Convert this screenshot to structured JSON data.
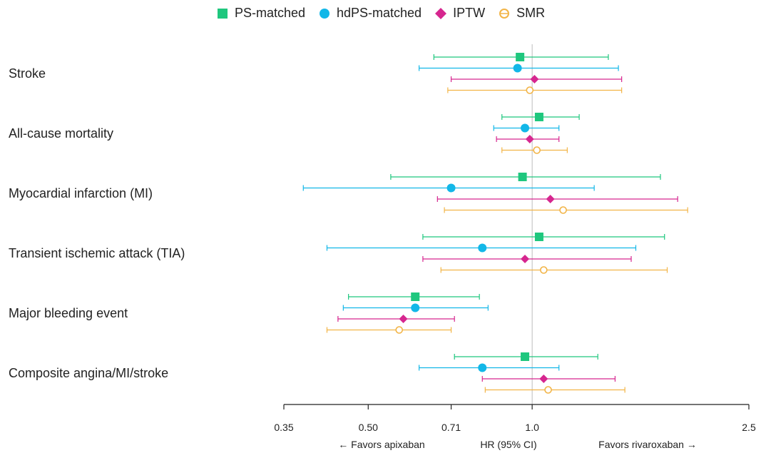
{
  "chart_data": {
    "type": "forest",
    "title": "",
    "legend": [
      {
        "name": "PS-matched",
        "marker": "square",
        "color": "#1fc77e"
      },
      {
        "name": "hdPS-matched",
        "marker": "circle",
        "color": "#12b7e8"
      },
      {
        "name": "IPTW",
        "marker": "diamond",
        "color": "#d6268f"
      },
      {
        "name": "SMR",
        "marker": "open-circle",
        "color": "#f2b446"
      }
    ],
    "xscale": "log",
    "xlim": [
      0.35,
      2.5
    ],
    "xticks": [
      0.35,
      0.5,
      0.71,
      1.0,
      2.5
    ],
    "xtick_labels": [
      "0.35",
      "0.50",
      "0.71",
      "1.0",
      "2.5"
    ],
    "xlabel": "HR (95% CI)",
    "left_note": "← Favors apixaban",
    "right_note": "Favors rivaroxaban →",
    "reference_line": 1.0,
    "outcomes": [
      {
        "label": "Stroke",
        "estimates": [
          {
            "series": "PS-matched",
            "hr": 0.95,
            "lo": 0.66,
            "hi": 1.38
          },
          {
            "series": "hdPS-matched",
            "hr": 0.94,
            "lo": 0.62,
            "hi": 1.44
          },
          {
            "series": "IPTW",
            "hr": 1.01,
            "lo": 0.71,
            "hi": 1.46
          },
          {
            "series": "SMR",
            "hr": 0.99,
            "lo": 0.7,
            "hi": 1.46
          }
        ]
      },
      {
        "label": "All-cause mortality",
        "estimates": [
          {
            "series": "PS-matched",
            "hr": 1.03,
            "lo": 0.88,
            "hi": 1.22
          },
          {
            "series": "hdPS-matched",
            "hr": 0.97,
            "lo": 0.85,
            "hi": 1.12
          },
          {
            "series": "IPTW",
            "hr": 0.99,
            "lo": 0.86,
            "hi": 1.12
          },
          {
            "series": "SMR",
            "hr": 1.02,
            "lo": 0.88,
            "hi": 1.16
          }
        ]
      },
      {
        "label": "Myocardial infarction (MI)",
        "estimates": [
          {
            "series": "PS-matched",
            "hr": 0.96,
            "lo": 0.55,
            "hi": 1.72
          },
          {
            "series": "hdPS-matched",
            "hr": 0.71,
            "lo": 0.38,
            "hi": 1.3
          },
          {
            "series": "IPTW",
            "hr": 1.08,
            "lo": 0.67,
            "hi": 1.85
          },
          {
            "series": "SMR",
            "hr": 1.14,
            "lo": 0.69,
            "hi": 1.93
          }
        ]
      },
      {
        "label": "Transient ischemic attack (TIA)",
        "estimates": [
          {
            "series": "PS-matched",
            "hr": 1.03,
            "lo": 0.63,
            "hi": 1.75
          },
          {
            "series": "hdPS-matched",
            "hr": 0.81,
            "lo": 0.42,
            "hi": 1.55
          },
          {
            "series": "IPTW",
            "hr": 0.97,
            "lo": 0.63,
            "hi": 1.52
          },
          {
            "series": "SMR",
            "hr": 1.05,
            "lo": 0.68,
            "hi": 1.77
          }
        ]
      },
      {
        "label": "Major bleeding event",
        "estimates": [
          {
            "series": "PS-matched",
            "hr": 0.61,
            "lo": 0.46,
            "hi": 0.8
          },
          {
            "series": "hdPS-matched",
            "hr": 0.61,
            "lo": 0.45,
            "hi": 0.83
          },
          {
            "series": "IPTW",
            "hr": 0.58,
            "lo": 0.44,
            "hi": 0.72
          },
          {
            "series": "SMR",
            "hr": 0.57,
            "lo": 0.42,
            "hi": 0.71
          }
        ]
      },
      {
        "label": "Composite angina/MI/stroke",
        "estimates": [
          {
            "series": "PS-matched",
            "hr": 0.97,
            "lo": 0.72,
            "hi": 1.32
          },
          {
            "series": "hdPS-matched",
            "hr": 0.81,
            "lo": 0.62,
            "hi": 1.12
          },
          {
            "series": "IPTW",
            "hr": 1.05,
            "lo": 0.81,
            "hi": 1.42
          },
          {
            "series": "SMR",
            "hr": 1.07,
            "lo": 0.82,
            "hi": 1.48
          }
        ]
      }
    ]
  }
}
